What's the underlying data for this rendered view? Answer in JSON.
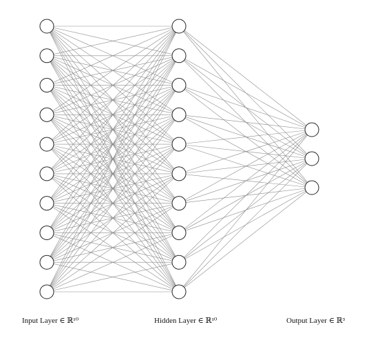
{
  "network": {
    "layers": [
      {
        "label": "Input Layer ∈ ℝ¹⁰",
        "nodes": 10
      },
      {
        "label": "Hidden Layer ∈ ℝ¹⁰",
        "nodes": 10
      },
      {
        "label": "Output Layer ∈ ℝ³",
        "nodes": 3
      }
    ],
    "colors": {
      "edge": "#8a8a8a",
      "node_stroke": "#222222",
      "node_fill": "#ffffff"
    }
  }
}
